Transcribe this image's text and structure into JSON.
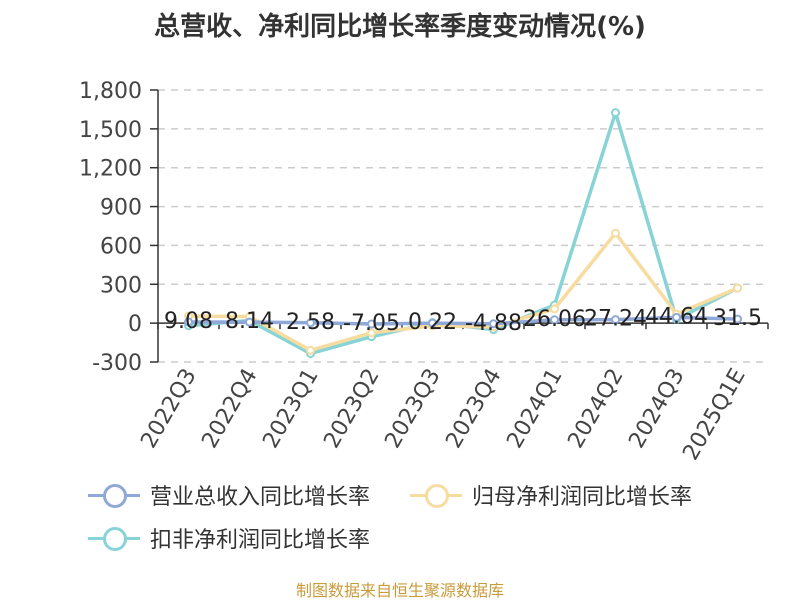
{
  "chart_data": {
    "type": "line",
    "title": "总营收、净利同比增长率季度变动情况(%)",
    "categories": [
      "2022Q3",
      "2022Q4",
      "2023Q1",
      "2023Q2",
      "2023Q3",
      "2023Q4",
      "2024Q1",
      "2024Q2",
      "2024Q3",
      "2025Q1E"
    ],
    "ylim": [
      -300,
      1800
    ],
    "yticks": [
      -300,
      0,
      300,
      600,
      900,
      1200,
      1500,
      1800
    ],
    "grid": true,
    "legend_position": "bottom-left",
    "series": [
      {
        "name": "营业总收入同比增长率",
        "color": "#8fa8d8",
        "values": [
          9.08,
          8.14,
          2.58,
          -7.05,
          0.22,
          -4.88,
          26.06,
          27.24,
          44.64,
          31.5
        ],
        "labels": [
          "9.08",
          "8.14",
          "2.58",
          "-7.05",
          "0.22",
          "-4.88",
          "26.06",
          "27.24",
          "44.64",
          "31.5"
        ]
      },
      {
        "name": "归母净利润同比增长率",
        "color": "#f7dca0",
        "values": [
          55,
          50,
          -210,
          -75,
          -20,
          -30,
          110,
          695,
          70,
          270
        ]
      },
      {
        "name": "扣非净利润同比增长率",
        "color": "#88d3d5",
        "values": [
          -20,
          20,
          -235,
          -105,
          5,
          -50,
          140,
          1625,
          30,
          270
        ]
      }
    ]
  },
  "legend": {
    "revenue": "营业总收入同比增长率",
    "net_profit": "归母净利润同比增长率",
    "deducted_profit": "扣非净利润同比增长率"
  },
  "footer": {
    "source": "制图数据来自恒生聚源数据库"
  }
}
